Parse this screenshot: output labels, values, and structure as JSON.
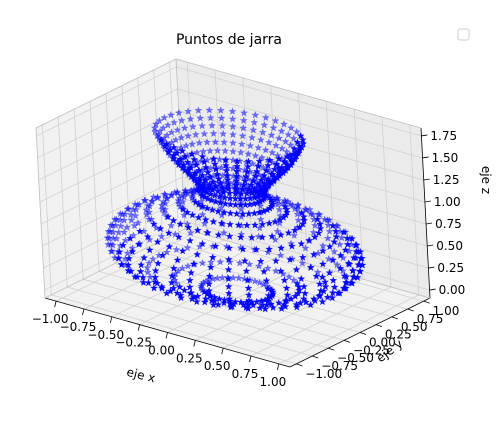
{
  "chart_data": {
    "type": "scatter3d",
    "title": "Puntos de jarra",
    "xlabel": "eje x",
    "ylabel": "eje y",
    "zlabel": "eje z",
    "xlim": [
      -1.1,
      1.1
    ],
    "ylim": [
      -1.1,
      1.1
    ],
    "zlim": [
      -0.09,
      1.84
    ],
    "x_ticks": [
      "−1.00",
      "−0.75",
      "−0.50",
      "−0.25",
      "0.00",
      "0.25",
      "0.50",
      "0.75",
      "1.00"
    ],
    "y_ticks": [
      "−1.00",
      "−0.75",
      "−0.50",
      "−0.25",
      "0.00",
      "0.25",
      "0.50",
      "0.75",
      "1.00"
    ],
    "z_ticks": [
      "0.00",
      "0.25",
      "0.50",
      "0.75",
      "1.00",
      "1.25",
      "1.50",
      "1.75"
    ],
    "grid": true,
    "legend": "top-right, empty",
    "marker": "star",
    "marker_color": "#0000ff",
    "surface": {
      "kind": "surface of revolution (jar)",
      "z_range": [
        0,
        1.75
      ],
      "rings": 25,
      "points_per_ring": 40,
      "radius_profile": {
        "z": [
          0.0,
          0.2,
          0.4,
          0.55,
          0.7,
          0.85,
          1.0,
          1.1,
          1.2,
          1.3,
          1.4,
          1.5,
          1.6,
          1.7,
          1.75
        ],
        "r": [
          0.28,
          0.85,
          1.0,
          0.98,
          0.85,
          0.6,
          0.33,
          0.25,
          0.27,
          0.33,
          0.4,
          0.47,
          0.52,
          0.56,
          0.58
        ]
      }
    }
  }
}
